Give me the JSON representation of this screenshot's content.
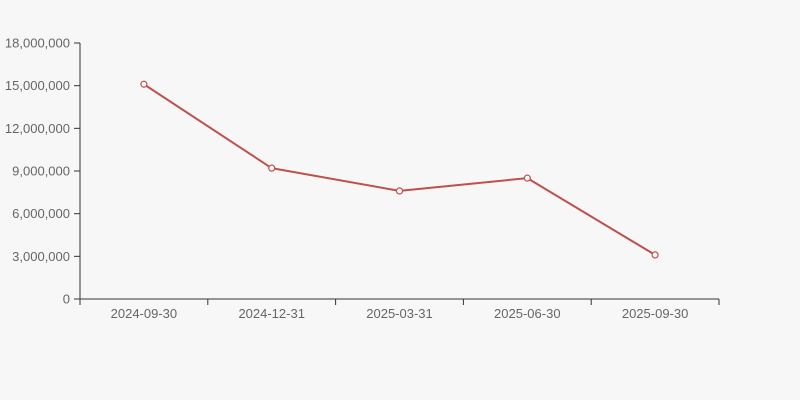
{
  "page": {
    "background_color": "#f7f7f7"
  },
  "chart_data": {
    "type": "line",
    "title": "",
    "xlabel": "",
    "ylabel": "",
    "categories": [
      "2024-09-30",
      "2024-12-31",
      "2025-03-31",
      "2025-06-30",
      "2025-09-30"
    ],
    "series": [
      {
        "name": "series-1",
        "values": [
          15100000,
          9200000,
          7600000,
          8500000,
          3100000
        ],
        "color": "#c0504d",
        "marker": "hollow-circle",
        "marker_fill": "#ffffff"
      }
    ],
    "ylim": [
      0,
      18000000
    ],
    "y_ticks": [
      0,
      3000000,
      6000000,
      9000000,
      12000000,
      15000000,
      18000000
    ],
    "y_tick_labels": [
      "0",
      "3,000,000",
      "6,000,000",
      "9,000,000",
      "12,000,000",
      "15,000,000",
      "18,000,000"
    ],
    "grid": false,
    "legend_position": "none",
    "axis_color": "#333333",
    "tick_label_color": "#666666"
  }
}
